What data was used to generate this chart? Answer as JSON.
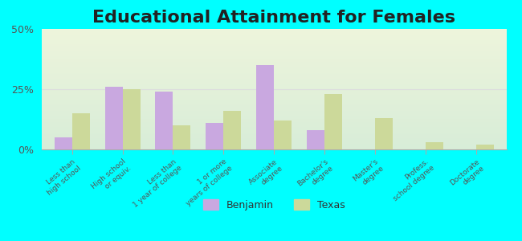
{
  "title": "Educational Attainment for Females",
  "categories": [
    "Less than\nhigh school",
    "High school\nor equiv.",
    "Less than\n1 year of college",
    "1 or more\nyears of college",
    "Associate\ndegree",
    "Bachelor's\ndegree",
    "Master's\ndegree",
    "Profess.\nschool degree",
    "Doctorate\ndegree"
  ],
  "benjamin": [
    5,
    26,
    24,
    11,
    35,
    8,
    0,
    0,
    0
  ],
  "texas": [
    15,
    25,
    10,
    16,
    12,
    23,
    13,
    3,
    2
  ],
  "benjamin_color": "#c9a8e0",
  "texas_color": "#ccd99a",
  "background_color": "#00ffff",
  "plot_bg_top": "#d8edd8",
  "plot_bg_bottom": "#eef5dc",
  "ylim": [
    0,
    50
  ],
  "yticks": [
    0,
    25,
    50
  ],
  "ytick_labels": [
    "0%",
    "25%",
    "50%"
  ],
  "title_fontsize": 16,
  "legend_labels": [
    "Benjamin",
    "Texas"
  ],
  "bar_width": 0.35
}
